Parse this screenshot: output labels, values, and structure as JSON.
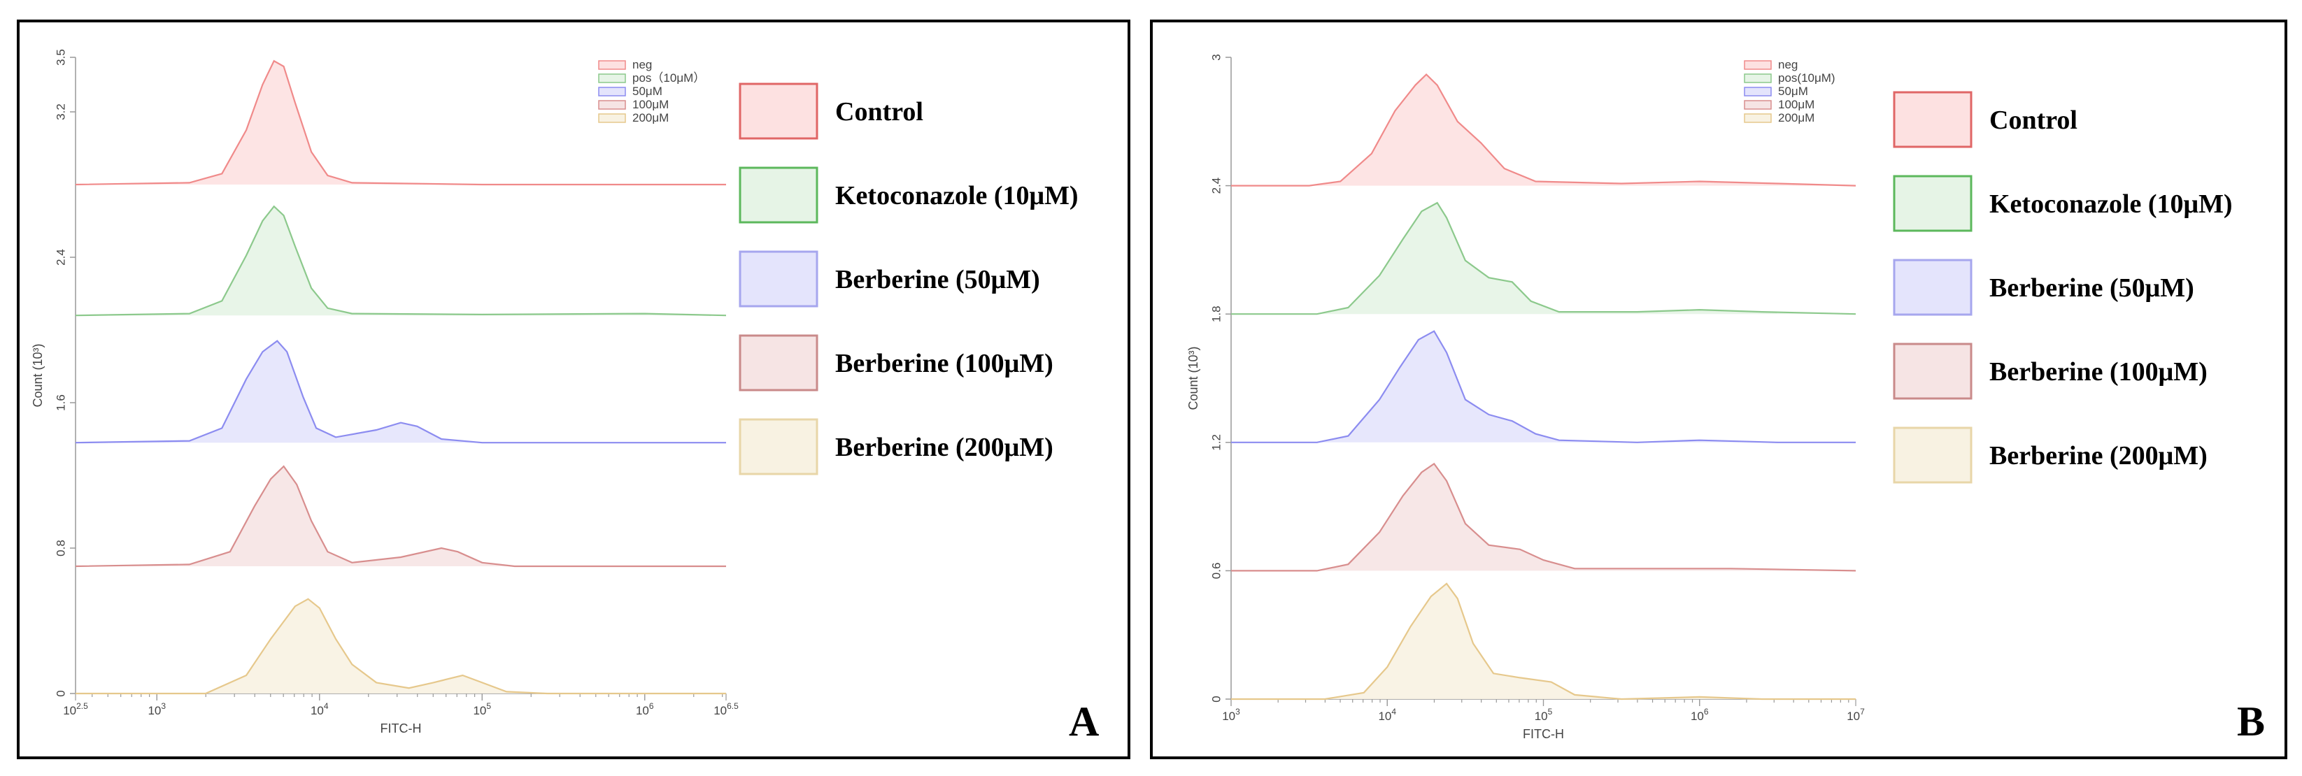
{
  "panels": [
    {
      "id": "A",
      "panel_label": "A",
      "chart_data": {
        "type": "area",
        "subtype": "flow-cytometry-offset-histogram",
        "title": "",
        "xlabel": "FITC-H",
        "ylabel": "Count (10³)",
        "xscale": "log",
        "xlim_log10": [
          2.5,
          6.5
        ],
        "x_ticks_log10": [
          2.5,
          3,
          4,
          5,
          6,
          6.5
        ],
        "x_tick_labels": [
          "10",
          "10",
          "10",
          "10",
          "10",
          "10"
        ],
        "x_tick_exponents": [
          "2.5",
          "3",
          "4",
          "5",
          "6",
          "6.5"
        ],
        "ylim": [
          0,
          3.5
        ],
        "y_ticks": [
          0,
          0.8,
          1.6,
          2.4,
          3.2,
          3.5
        ],
        "y_tick_labels": [
          "0",
          "0.8",
          "1.6",
          "2.4",
          "3.2",
          "3.5"
        ],
        "inline_legend": [
          "neg",
          "pos（10μM）",
          "50μM",
          "100μM",
          "200μM"
        ],
        "series": [
          {
            "name": "Control",
            "inline": "neg",
            "baseline": 2.8,
            "line": "#f08a8a",
            "fill": "#fde1e1",
            "points": [
              [
                2.5,
                0
              ],
              [
                3.2,
                0.01
              ],
              [
                3.4,
                0.06
              ],
              [
                3.55,
                0.3
              ],
              [
                3.65,
                0.55
              ],
              [
                3.72,
                0.68
              ],
              [
                3.78,
                0.65
              ],
              [
                3.85,
                0.45
              ],
              [
                3.95,
                0.18
              ],
              [
                4.05,
                0.05
              ],
              [
                4.2,
                0.01
              ],
              [
                5,
                0
              ],
              [
                6.5,
                0
              ]
            ]
          },
          {
            "name": "Ketoconazole (10μM)",
            "inline": "pos（10μM）",
            "baseline": 2.08,
            "line": "#8cc98c",
            "fill": "#e6f4e6",
            "points": [
              [
                2.5,
                0
              ],
              [
                3.2,
                0.01
              ],
              [
                3.4,
                0.08
              ],
              [
                3.55,
                0.33
              ],
              [
                3.65,
                0.52
              ],
              [
                3.72,
                0.6
              ],
              [
                3.78,
                0.55
              ],
              [
                3.85,
                0.38
              ],
              [
                3.95,
                0.15
              ],
              [
                4.05,
                0.04
              ],
              [
                4.2,
                0.01
              ],
              [
                5,
                0.005
              ],
              [
                6,
                0.01
              ],
              [
                6.5,
                0
              ]
            ]
          },
          {
            "name": "Berberine (50μM)",
            "inline": "50μM",
            "baseline": 1.38,
            "line": "#8c8cf0",
            "fill": "#e4e4fc",
            "points": [
              [
                2.5,
                0
              ],
              [
                3.2,
                0.01
              ],
              [
                3.4,
                0.08
              ],
              [
                3.55,
                0.35
              ],
              [
                3.65,
                0.5
              ],
              [
                3.74,
                0.56
              ],
              [
                3.8,
                0.5
              ],
              [
                3.9,
                0.25
              ],
              [
                3.98,
                0.08
              ],
              [
                4.1,
                0.03
              ],
              [
                4.35,
                0.07
              ],
              [
                4.5,
                0.11
              ],
              [
                4.6,
                0.09
              ],
              [
                4.75,
                0.02
              ],
              [
                5,
                0
              ],
              [
                6.5,
                0
              ]
            ]
          },
          {
            "name": "Berberine (100μM)",
            "inline": "100μM",
            "baseline": 0.7,
            "line": "#d88e8e",
            "fill": "#f6e4e4",
            "points": [
              [
                2.5,
                0
              ],
              [
                3.2,
                0.01
              ],
              [
                3.45,
                0.08
              ],
              [
                3.6,
                0.33
              ],
              [
                3.7,
                0.48
              ],
              [
                3.78,
                0.55
              ],
              [
                3.86,
                0.45
              ],
              [
                3.95,
                0.25
              ],
              [
                4.05,
                0.08
              ],
              [
                4.2,
                0.02
              ],
              [
                4.5,
                0.05
              ],
              [
                4.75,
                0.1
              ],
              [
                4.85,
                0.08
              ],
              [
                5,
                0.02
              ],
              [
                5.2,
                0
              ],
              [
                6.5,
                0
              ]
            ]
          },
          {
            "name": "Berberine (200μM)",
            "inline": "200μM",
            "baseline": 0,
            "line": "#e6c88c",
            "fill": "#f8f2e2",
            "points": [
              [
                2.5,
                0
              ],
              [
                3.3,
                0
              ],
              [
                3.55,
                0.1
              ],
              [
                3.7,
                0.3
              ],
              [
                3.85,
                0.48
              ],
              [
                3.93,
                0.52
              ],
              [
                4.0,
                0.47
              ],
              [
                4.1,
                0.3
              ],
              [
                4.2,
                0.16
              ],
              [
                4.35,
                0.06
              ],
              [
                4.55,
                0.03
              ],
              [
                4.7,
                0.06
              ],
              [
                4.88,
                0.1
              ],
              [
                5.0,
                0.06
              ],
              [
                5.15,
                0.01
              ],
              [
                5.4,
                0
              ],
              [
                6.5,
                0
              ]
            ]
          }
        ]
      }
    },
    {
      "id": "B",
      "panel_label": "B",
      "chart_data": {
        "type": "area",
        "subtype": "flow-cytometry-offset-histogram",
        "title": "",
        "xlabel": "FITC-H",
        "ylabel": "Count (10³)",
        "xscale": "log",
        "xlim_log10": [
          3,
          7
        ],
        "x_ticks_log10": [
          3,
          4,
          5,
          6,
          7
        ],
        "x_tick_labels": [
          "10",
          "10",
          "10",
          "10",
          "10"
        ],
        "x_tick_exponents": [
          "3",
          "4",
          "5",
          "6",
          "7"
        ],
        "ylim": [
          0,
          3
        ],
        "y_ticks": [
          0,
          0.6,
          1.2,
          1.8,
          2.4,
          3
        ],
        "y_tick_labels": [
          "0",
          "0.6",
          "1.2",
          "1.8",
          "2.4",
          "3"
        ],
        "inline_legend": [
          "neg",
          "pos(10μM)",
          "50μM",
          "100μM",
          "200μM"
        ],
        "series": [
          {
            "name": "Control",
            "inline": "neg",
            "baseline": 2.4,
            "line": "#f08a8a",
            "fill": "#fde1e1",
            "points": [
              [
                3,
                0
              ],
              [
                3.5,
                0
              ],
              [
                3.7,
                0.02
              ],
              [
                3.9,
                0.15
              ],
              [
                4.05,
                0.35
              ],
              [
                4.18,
                0.47
              ],
              [
                4.25,
                0.52
              ],
              [
                4.32,
                0.47
              ],
              [
                4.45,
                0.3
              ],
              [
                4.6,
                0.2
              ],
              [
                4.75,
                0.08
              ],
              [
                4.95,
                0.02
              ],
              [
                5.5,
                0.01
              ],
              [
                6,
                0.02
              ],
              [
                6.5,
                0.01
              ],
              [
                7,
                0
              ]
            ]
          },
          {
            "name": "Ketoconazole (10μM)",
            "inline": "pos(10μM)",
            "baseline": 1.8,
            "line": "#8cc98c",
            "fill": "#e6f4e6",
            "points": [
              [
                3,
                0
              ],
              [
                3.55,
                0
              ],
              [
                3.75,
                0.03
              ],
              [
                3.95,
                0.18
              ],
              [
                4.1,
                0.35
              ],
              [
                4.22,
                0.48
              ],
              [
                4.32,
                0.52
              ],
              [
                4.38,
                0.45
              ],
              [
                4.5,
                0.25
              ],
              [
                4.65,
                0.17
              ],
              [
                4.8,
                0.15
              ],
              [
                4.92,
                0.06
              ],
              [
                5.1,
                0.01
              ],
              [
                5.6,
                0.01
              ],
              [
                6,
                0.02
              ],
              [
                6.4,
                0.01
              ],
              [
                7,
                0
              ]
            ]
          },
          {
            "name": "Berberine (50μM)",
            "inline": "50μM",
            "baseline": 1.2,
            "line": "#8c8cf0",
            "fill": "#e4e4fc",
            "points": [
              [
                3,
                0
              ],
              [
                3.55,
                0
              ],
              [
                3.75,
                0.03
              ],
              [
                3.95,
                0.2
              ],
              [
                4.08,
                0.35
              ],
              [
                4.2,
                0.48
              ],
              [
                4.3,
                0.52
              ],
              [
                4.38,
                0.42
              ],
              [
                4.5,
                0.2
              ],
              [
                4.65,
                0.13
              ],
              [
                4.8,
                0.1
              ],
              [
                4.95,
                0.04
              ],
              [
                5.1,
                0.01
              ],
              [
                5.6,
                0
              ],
              [
                6,
                0.01
              ],
              [
                6.5,
                0
              ],
              [
                7,
                0
              ]
            ]
          },
          {
            "name": "Berberine (100μM)",
            "inline": "100μM",
            "baseline": 0.6,
            "line": "#d88e8e",
            "fill": "#f6e4e4",
            "points": [
              [
                3,
                0
              ],
              [
                3.55,
                0
              ],
              [
                3.75,
                0.03
              ],
              [
                3.95,
                0.18
              ],
              [
                4.1,
                0.35
              ],
              [
                4.22,
                0.46
              ],
              [
                4.3,
                0.5
              ],
              [
                4.38,
                0.42
              ],
              [
                4.5,
                0.22
              ],
              [
                4.65,
                0.12
              ],
              [
                4.85,
                0.1
              ],
              [
                5.0,
                0.05
              ],
              [
                5.2,
                0.01
              ],
              [
                5.8,
                0.01
              ],
              [
                6.2,
                0.01
              ],
              [
                7,
                0
              ]
            ]
          },
          {
            "name": "Berberine (200μM)",
            "inline": "200μM",
            "baseline": 0,
            "line": "#e6c88c",
            "fill": "#f8f2e2",
            "points": [
              [
                3,
                0
              ],
              [
                3.6,
                0
              ],
              [
                3.85,
                0.03
              ],
              [
                4.0,
                0.15
              ],
              [
                4.15,
                0.34
              ],
              [
                4.28,
                0.48
              ],
              [
                4.38,
                0.54
              ],
              [
                4.45,
                0.47
              ],
              [
                4.55,
                0.26
              ],
              [
                4.68,
                0.12
              ],
              [
                4.85,
                0.1
              ],
              [
                5.05,
                0.08
              ],
              [
                5.2,
                0.02
              ],
              [
                5.5,
                0
              ],
              [
                6.0,
                0.01
              ],
              [
                6.4,
                0
              ],
              [
                7,
                0
              ]
            ]
          }
        ]
      }
    }
  ],
  "legend": {
    "items": [
      {
        "label": "Control",
        "border": "#e06666",
        "fill": "#fde1e1"
      },
      {
        "label": "Ketoconazole (10μM)",
        "border": "#5cb85c",
        "fill": "#e6f4e6"
      },
      {
        "label": "Berberine (50μM)",
        "border": "#a6a6ee",
        "fill": "#e4e4fc"
      },
      {
        "label": "Berberine (100μM)",
        "border": "#c98a8a",
        "fill": "#f6e4e4"
      },
      {
        "label": "Berberine (200μM)",
        "border": "#e8d6a8",
        "fill": "#f8f2e2"
      }
    ]
  }
}
